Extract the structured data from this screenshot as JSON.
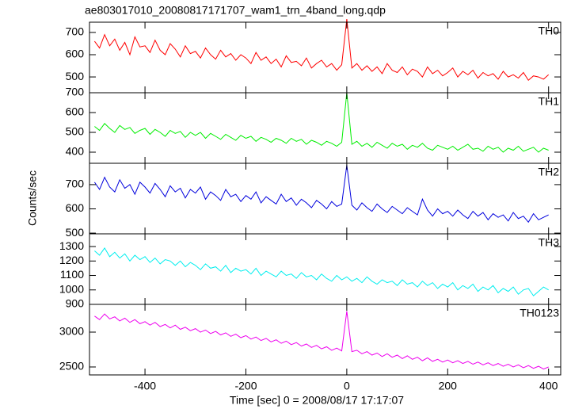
{
  "chart_data": {
    "type": "line",
    "title": "ae803017010_20080817171707_wam1_trn_4band_long.qdp",
    "xlabel": "Time [sec] 0 = 2008/08/17 17:17:07",
    "ylabel": "Counts/sec",
    "xlim": [
      -510,
      424
    ],
    "xticks": [
      -400,
      -200,
      0,
      200,
      400
    ],
    "x": [
      -500,
      -490,
      -480,
      -470,
      -460,
      -450,
      -440,
      -430,
      -420,
      -410,
      -400,
      -390,
      -380,
      -370,
      -360,
      -350,
      -340,
      -330,
      -320,
      -310,
      -300,
      -290,
      -280,
      -270,
      -260,
      -250,
      -240,
      -230,
      -220,
      -210,
      -200,
      -190,
      -180,
      -170,
      -160,
      -150,
      -140,
      -130,
      -120,
      -110,
      -100,
      -90,
      -80,
      -70,
      -60,
      -50,
      -40,
      -30,
      -20,
      -10,
      0,
      10,
      20,
      30,
      40,
      50,
      60,
      70,
      80,
      90,
      100,
      110,
      120,
      130,
      140,
      150,
      160,
      170,
      180,
      190,
      200,
      210,
      220,
      230,
      240,
      250,
      260,
      270,
      280,
      290,
      300,
      310,
      320,
      330,
      340,
      350,
      360,
      370,
      380,
      390,
      400
    ],
    "series": [
      {
        "name": "TH0",
        "color": "#ff0000",
        "ylim": [
          429,
          746
        ],
        "yticks": [
          500,
          600,
          700
        ],
        "values": [
          660,
          630,
          690,
          640,
          670,
          620,
          655,
          600,
          680,
          635,
          640,
          610,
          665,
          620,
          600,
          650,
          625,
          590,
          640,
          605,
          615,
          585,
          630,
          600,
          580,
          620,
          590,
          605,
          575,
          600,
          585,
          560,
          610,
          575,
          590,
          560,
          580,
          545,
          595,
          565,
          570,
          550,
          585,
          540,
          560,
          575,
          545,
          560,
          530,
          555,
          760,
          540,
          560,
          530,
          550,
          525,
          545,
          515,
          560,
          530,
          520,
          545,
          510,
          535,
          525,
          500,
          545,
          515,
          530,
          505,
          520,
          540,
          500,
          525,
          510,
          530,
          495,
          520,
          505,
          515,
          490,
          525,
          500,
          510,
          495,
          520,
          485,
          505,
          500,
          490,
          510
        ]
      },
      {
        "name": "TH1",
        "color": "#00ee00",
        "ylim": [
          344,
          700
        ],
        "yticks": [
          400,
          500,
          600,
          700
        ],
        "values": [
          530,
          510,
          545,
          520,
          500,
          535,
          515,
          525,
          495,
          510,
          520,
          490,
          515,
          500,
          480,
          510,
          495,
          505,
          475,
          500,
          485,
          500,
          470,
          495,
          480,
          465,
          490,
          475,
          460,
          485,
          470,
          480,
          455,
          475,
          465,
          450,
          470,
          460,
          445,
          470,
          455,
          465,
          440,
          460,
          450,
          435,
          455,
          445,
          430,
          450,
          700,
          440,
          455,
          430,
          445,
          425,
          450,
          435,
          420,
          445,
          430,
          440,
          415,
          435,
          425,
          445,
          420,
          410,
          435,
          425,
          415,
          430,
          410,
          425,
          440,
          415,
          420,
          405,
          430,
          415,
          425,
          400,
          420,
          410,
          430,
          405,
          415,
          425,
          400,
          420,
          410
        ]
      },
      {
        "name": "TH2",
        "color": "#0000dd",
        "ylim": [
          497,
          788
        ],
        "yticks": [
          500,
          600,
          700
        ],
        "values": [
          710,
          680,
          730,
          690,
          670,
          720,
          685,
          700,
          660,
          710,
          690,
          665,
          705,
          680,
          650,
          695,
          670,
          685,
          645,
          680,
          665,
          690,
          640,
          670,
          655,
          635,
          680,
          650,
          660,
          630,
          655,
          640,
          670,
          625,
          650,
          635,
          620,
          660,
          630,
          645,
          615,
          640,
          625,
          605,
          635,
          620,
          600,
          630,
          610,
          620,
          780,
          615,
          595,
          625,
          605,
          590,
          620,
          600,
          585,
          610,
          595,
          580,
          605,
          590,
          575,
          640,
          595,
          570,
          600,
          580,
          590,
          570,
          595,
          575,
          560,
          590,
          570,
          585,
          555,
          580,
          565,
          575,
          550,
          585,
          560,
          570,
          545,
          580,
          555,
          565,
          575
        ]
      },
      {
        "name": "TH3",
        "color": "#00eeee",
        "ylim": [
          900,
          1388
        ],
        "yticks": [
          900,
          1000,
          1100,
          1200,
          1300
        ],
        "values": [
          1270,
          1240,
          1290,
          1230,
          1260,
          1220,
          1250,
          1200,
          1240,
          1210,
          1230,
          1190,
          1220,
          1180,
          1210,
          1200,
          1170,
          1200,
          1160,
          1190,
          1170,
          1140,
          1180,
          1150,
          1160,
          1130,
          1170,
          1120,
          1150,
          1130,
          1140,
          1110,
          1150,
          1100,
          1130,
          1110,
          1090,
          1130,
          1100,
          1110,
          1080,
          1120,
          1090,
          1100,
          1070,
          1110,
          1080,
          1060,
          1100,
          1070,
          1090,
          1060,
          1080,
          1050,
          1090,
          1060,
          1040,
          1070,
          1050,
          1060,
          1030,
          1070,
          1040,
          1050,
          1020,
          1060,
          1030,
          1050,
          1010,
          1040,
          1020,
          1050,
          1000,
          1030,
          1010,
          1040,
          990,
          1020,
          1000,
          1030,
          980,
          1010,
          990,
          1020,
          970,
          1000,
          1010,
          960,
          990,
          1020,
          1000
        ]
      },
      {
        "name": "TH0123",
        "color": "#ee00ee",
        "ylim": [
          2386,
          3398
        ],
        "yticks": [
          2500,
          3000
        ],
        "values": [
          3230,
          3180,
          3260,
          3190,
          3220,
          3160,
          3200,
          3140,
          3180,
          3120,
          3150,
          3100,
          3140,
          3080,
          3110,
          3060,
          3100,
          3040,
          3070,
          3020,
          3050,
          3000,
          3030,
          2980,
          3010,
          2960,
          2990,
          2940,
          2970,
          2920,
          2950,
          2900,
          2930,
          2880,
          2910,
          2860,
          2890,
          2840,
          2870,
          2820,
          2850,
          2800,
          2830,
          2780,
          2810,
          2760,
          2790,
          2740,
          2770,
          2730,
          3300,
          2720,
          2740,
          2690,
          2720,
          2670,
          2700,
          2650,
          2690,
          2640,
          2670,
          2620,
          2660,
          2610,
          2640,
          2590,
          2630,
          2580,
          2610,
          2570,
          2600,
          2560,
          2590,
          2550,
          2580,
          2540,
          2570,
          2530,
          2560,
          2520,
          2550,
          2510,
          2540,
          2500,
          2530,
          2490,
          2520,
          2480,
          2510,
          2470,
          2500
        ]
      }
    ]
  }
}
